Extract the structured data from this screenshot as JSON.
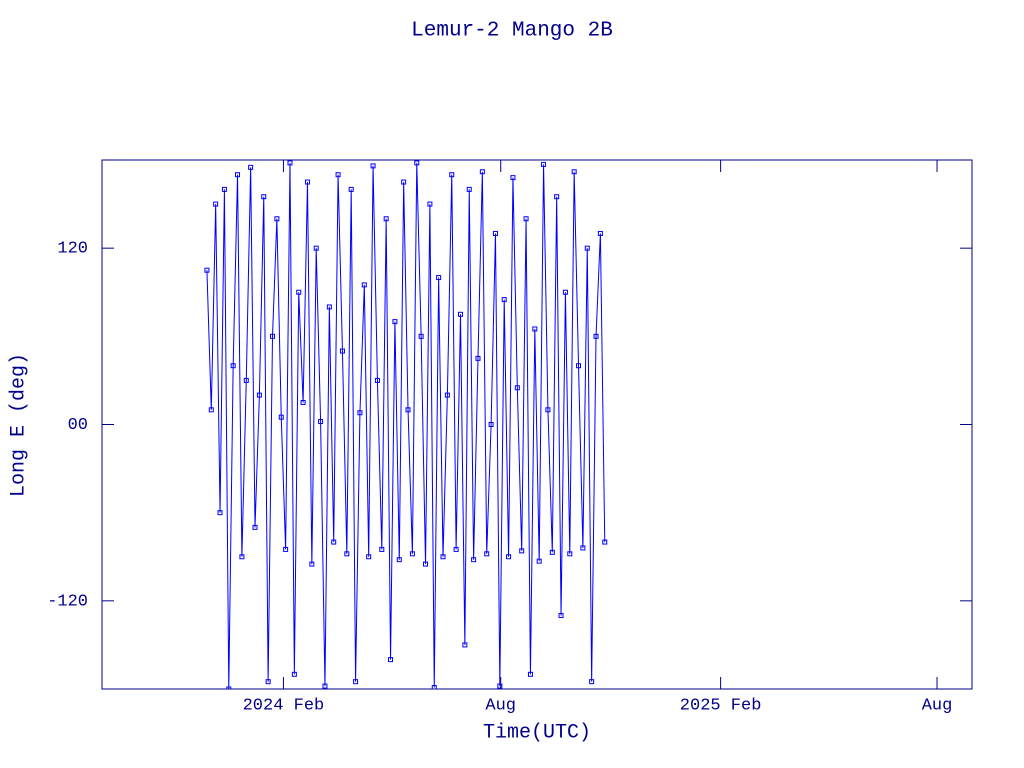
{
  "chart_data": {
    "type": "line",
    "title": "Lemur-2 Mango 2B",
    "x_label": "Time(UTC)",
    "y_label": "Long E (deg)",
    "color": "#0000ff",
    "markers": true,
    "xlim": [
      2023.67,
      2025.66
    ],
    "ylim": [
      -180,
      180
    ],
    "xticks": [
      {
        "value": 2024.085,
        "label": "2024 Feb"
      },
      {
        "value": 2024.582,
        "label": "Aug"
      },
      {
        "value": 2025.085,
        "label": "2025 Feb"
      },
      {
        "value": 2025.58,
        "label": "Aug"
      }
    ],
    "yticks": [
      -120,
      {
        "value": 0,
        "label": "00"
      },
      120
    ],
    "x": [
      2023.91,
      2023.92,
      2023.93,
      2023.94,
      2023.95,
      2023.96,
      2023.97,
      2023.98,
      2023.99,
      2024.0,
      2024.01,
      2024.02,
      2024.03,
      2024.04,
      2024.05,
      2024.06,
      2024.07,
      2024.08,
      2024.09,
      2024.1,
      2024.11,
      2024.12,
      2024.13,
      2024.14,
      2024.15,
      2024.16,
      2024.17,
      2024.18,
      2024.19,
      2024.2,
      2024.21,
      2024.22,
      2024.23,
      2024.24,
      2024.25,
      2024.26,
      2024.27,
      2024.28,
      2024.29,
      2024.3,
      2024.31,
      2024.32,
      2024.33,
      2024.34,
      2024.35,
      2024.36,
      2024.37,
      2024.38,
      2024.39,
      2024.4,
      2024.41,
      2024.42,
      2024.43,
      2024.44,
      2024.45,
      2024.46,
      2024.47,
      2024.48,
      2024.49,
      2024.5,
      2024.51,
      2024.52,
      2024.53,
      2024.54,
      2024.55,
      2024.56,
      2024.57,
      2024.58,
      2024.59,
      2024.6,
      2024.61,
      2024.62,
      2024.63,
      2024.64,
      2024.65,
      2024.66,
      2024.67,
      2024.68,
      2024.69,
      2024.7,
      2024.71,
      2024.72,
      2024.73,
      2024.74,
      2024.75,
      2024.76,
      2024.77,
      2024.78,
      2024.79,
      2024.8,
      2024.81,
      2024.82
    ],
    "values": [
      105,
      10,
      150,
      -60,
      160,
      -180,
      40,
      170,
      -90,
      30,
      175,
      -70,
      20,
      155,
      -175,
      60,
      140,
      5,
      -85,
      178,
      -170,
      90,
      15,
      165,
      -95,
      120,
      2,
      -178,
      80,
      -80,
      170,
      50,
      -88,
      160,
      -175,
      8,
      95,
      -90,
      176,
      30,
      -85,
      140,
      -160,
      70,
      -92,
      165,
      10,
      -88,
      178,
      60,
      -95,
      150,
      -179,
      100,
      -90,
      20,
      170,
      -85,
      75,
      -150,
      160,
      -92,
      45,
      172,
      -88,
      0,
      130,
      -178,
      85,
      -90,
      168,
      25,
      -86,
      140,
      -170,
      65,
      -93,
      177,
      10,
      -87,
      155,
      -130,
      90,
      -88,
      172,
      40,
      -84,
      120,
      -175,
      60,
      130,
      -80
    ]
  }
}
